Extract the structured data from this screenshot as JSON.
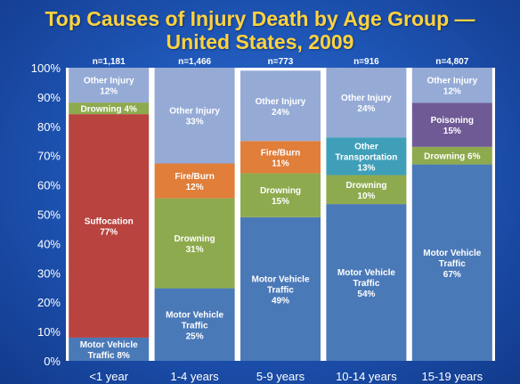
{
  "title_line1": "Top Causes of Injury Death by Age Group —",
  "title_line2": "United States, 2009",
  "chart_data": {
    "type": "bar",
    "stacked": true,
    "percent": true,
    "title": "Top Causes of Injury Death by Age Group — United States, 2009",
    "ylim": [
      0,
      100
    ],
    "y_ticks": [
      "0%",
      "10%",
      "20%",
      "30%",
      "40%",
      "50%",
      "60%",
      "70%",
      "80%",
      "90%",
      "100%"
    ],
    "categories": [
      "<1 year",
      "1-4 years",
      "5-9 years",
      "10-14 years",
      "15-19 years"
    ],
    "n_labels": [
      "n=1,181",
      "n=1,466",
      "n=773",
      "n=916",
      "n=4,807"
    ],
    "colors": {
      "motor_vehicle": "#4a79b8",
      "suffocation": "#b8433f",
      "drowning": "#8eaa4e",
      "fire_burn": "#e07e3a",
      "other_transport": "#3f9fb8",
      "poisoning": "#6f5a96",
      "other_injury": "#95abd6"
    },
    "bars": [
      {
        "segments": [
          {
            "key": "motor_vehicle",
            "label": "Motor Vehicle Traffic",
            "value": 8,
            "pct": "8%",
            "inline": true
          },
          {
            "key": "suffocation",
            "label": "Suffocation",
            "value": 77,
            "pct": "77%"
          },
          {
            "key": "drowning",
            "label": "Drowning",
            "value": 4,
            "pct": "4%",
            "inline": true
          },
          {
            "key": "other_injury",
            "label": "Other Injury",
            "value": 12,
            "pct": "12%"
          }
        ]
      },
      {
        "segments": [
          {
            "key": "motor_vehicle",
            "label": "Motor Vehicle Traffic",
            "value": 25,
            "pct": "25%"
          },
          {
            "key": "drowning",
            "label": "Drowning",
            "value": 31,
            "pct": "31%"
          },
          {
            "key": "fire_burn",
            "label": "Fire/Burn",
            "value": 12,
            "pct": "12%"
          },
          {
            "key": "other_injury",
            "label": "Other Injury",
            "value": 33,
            "pct": "33%"
          }
        ]
      },
      {
        "segments": [
          {
            "key": "motor_vehicle",
            "label": "Motor Vehicle Traffic",
            "value": 49,
            "pct": "49%"
          },
          {
            "key": "drowning",
            "label": "Drowning",
            "value": 15,
            "pct": "15%"
          },
          {
            "key": "fire_burn",
            "label": "Fire/Burn",
            "value": 11,
            "pct": "11%"
          },
          {
            "key": "other_injury",
            "label": "Other Injury",
            "value": 24,
            "pct": "24%"
          }
        ]
      },
      {
        "segments": [
          {
            "key": "motor_vehicle",
            "label": "Motor Vehicle Traffic",
            "value": 54,
            "pct": "54%"
          },
          {
            "key": "drowning",
            "label": "Drowning",
            "value": 10,
            "pct": "10%"
          },
          {
            "key": "other_transport",
            "label": "Other Transportation",
            "value": 13,
            "pct": "13%"
          },
          {
            "key": "other_injury",
            "label": "Other Injury",
            "value": 24,
            "pct": "24%"
          }
        ]
      },
      {
        "segments": [
          {
            "key": "motor_vehicle",
            "label": "Motor Vehicle Traffic",
            "value": 67,
            "pct": "67%"
          },
          {
            "key": "drowning",
            "label": "Drowning",
            "value": 6,
            "pct": "6%",
            "inline": true
          },
          {
            "key": "poisoning",
            "label": "Poisoning",
            "value": 15,
            "pct": "15%"
          },
          {
            "key": "other_injury",
            "label": "Other Injury",
            "value": 12,
            "pct": "12%"
          }
        ]
      }
    ]
  }
}
